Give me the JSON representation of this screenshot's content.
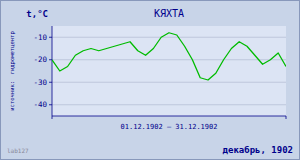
{
  "chart_data": {
    "type": "line",
    "title": "КЯХТА",
    "y_label": "t,°C",
    "x_label": "01.12.1902 – 31.12.1902",
    "annotations": [
      "lab127",
      "декабрь, 1902",
      "источник:  гидрометцентр"
    ],
    "x": [
      1,
      2,
      3,
      4,
      5,
      6,
      7,
      8,
      9,
      10,
      11,
      12,
      13,
      14,
      15,
      16,
      17,
      18,
      19,
      20,
      21,
      22,
      23,
      24,
      25,
      26,
      27,
      28,
      29,
      30,
      31
    ],
    "values": [
      -20,
      -25,
      -23,
      -18,
      -16,
      -15,
      -16,
      -15,
      -14,
      -13,
      -12,
      -16,
      -18,
      -15,
      -10,
      -8,
      -9,
      -14,
      -20,
      -28,
      -29,
      -26,
      -20,
      -15,
      -12,
      -14,
      -18,
      -22,
      -20,
      -17,
      -23
    ],
    "color": "#00bb00",
    "xlim": [
      1,
      31
    ],
    "xticks": [
      1,
      31
    ],
    "ylim": [
      -45,
      -5
    ],
    "yticks": [
      -40,
      -30,
      -20,
      -10
    ],
    "grid": true,
    "tick_labels": "y"
  }
}
